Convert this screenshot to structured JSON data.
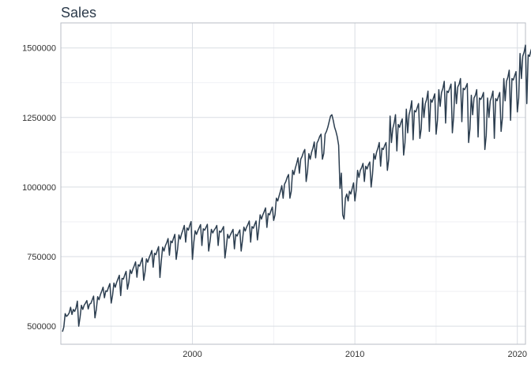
{
  "chart_data": {
    "type": "line",
    "title": "Sales",
    "xlabel": "",
    "ylabel": "",
    "x_range": [
      1991.9,
      2020.5
    ],
    "ylim": [
      435000,
      1590000
    ],
    "x_ticks": [
      {
        "value": 2000,
        "label": "2000"
      },
      {
        "value": 2010,
        "label": "2010"
      },
      {
        "value": 2020,
        "label": "2020"
      }
    ],
    "y_ticks": [
      {
        "value": 500000,
        "label": "500000"
      },
      {
        "value": 750000,
        "label": "750000"
      },
      {
        "value": 1000000,
        "label": "1000000"
      },
      {
        "value": 1250000,
        "label": "1250000"
      },
      {
        "value": 1500000,
        "label": "1500000"
      }
    ],
    "grid": true,
    "colors": {
      "line": "#2c3e50",
      "grid": "#d9dde3",
      "panel_border": "#b9bec6"
    },
    "series": [
      {
        "x_start": "1992-01",
        "frequency": "monthly",
        "values": [
          480000,
          497000,
          545000,
          535000,
          540000,
          548000,
          568000,
          542000,
          560000,
          553000,
          565000,
          590000,
          500000,
          532000,
          575000,
          560000,
          575000,
          583000,
          592000,
          562000,
          579000,
          582000,
          595000,
          608000,
          530000,
          560000,
          606000,
          595000,
          613000,
          626000,
          640000,
          602000,
          627000,
          625000,
          640000,
          653000,
          583000,
          611000,
          655000,
          640000,
          657000,
          670000,
          683000,
          610000,
          672000,
          669000,
          684000,
          697000,
          633000,
          657000,
          702000,
          689000,
          705000,
          717000,
          731000,
          676000,
          721000,
          716000,
          731000,
          745000,
          665000,
          695000,
          742000,
          730000,
          746000,
          758000,
          772000,
          712000,
          762000,
          757000,
          772000,
          786000,
          675000,
          735000,
          784000,
          770000,
          789000,
          800000,
          815000,
          755000,
          806000,
          800000,
          816000,
          830000,
          740000,
          776000,
          828000,
          813000,
          832000,
          846000,
          862000,
          802000,
          853000,
          845000,
          862000,
          876000,
          740000,
          800000,
          843000,
          830000,
          843000,
          854000,
          865000,
          790000,
          850000,
          845000,
          855000,
          866000,
          770000,
          805000,
          848000,
          835000,
          845000,
          852000,
          862000,
          790000,
          842000,
          838000,
          848000,
          858000,
          745000,
          783000,
          830000,
          816000,
          828000,
          838000,
          848000,
          778000,
          830000,
          824000,
          836000,
          846000,
          770000,
          810000,
          856000,
          842000,
          856000,
          866000,
          878000,
          802000,
          858000,
          852000,
          866000,
          878000,
          810000,
          850000,
          900000,
          885000,
          900000,
          912000,
          925000,
          855000,
          905000,
          900000,
          915000,
          928000,
          880000,
          900000,
          960000,
          950000,
          968000,
          985000,
          1005000,
          960000,
          1010000,
          1020000,
          1035000,
          1045000,
          960000,
          985000,
          1060000,
          1045000,
          1068000,
          1085000,
          1105000,
          1050000,
          1100000,
          1110000,
          1125000,
          1135000,
          1020000,
          1055000,
          1120000,
          1100000,
          1125000,
          1140000,
          1162000,
          1105000,
          1158000,
          1168000,
          1182000,
          1190000,
          1100000,
          1120000,
          1190000,
          1200000,
          1215000,
          1235000,
          1255000,
          1260000,
          1240000,
          1215000,
          1200000,
          1180000,
          1150000,
          995000,
          1050000,
          900000,
          885000,
          960000,
          975000,
          950000,
          985000,
          975000,
          995000,
          1015000,
          950000,
          990000,
          1060000,
          1035000,
          1060000,
          1070000,
          1085000,
          1020000,
          1075000,
          1065000,
          1080000,
          1090000,
          1000000,
          1045000,
          1120000,
          1100000,
          1125000,
          1140000,
          1160000,
          1075000,
          1140000,
          1135000,
          1150000,
          1160000,
          1060000,
          1100000,
          1255000,
          1160000,
          1210000,
          1230000,
          1260000,
          1130000,
          1225000,
          1215000,
          1232000,
          1245000,
          1115000,
          1160000,
          1280000,
          1195000,
          1260000,
          1280000,
          1310000,
          1170000,
          1275000,
          1270000,
          1285000,
          1300000,
          1175000,
          1210000,
          1320000,
          1250000,
          1300000,
          1315000,
          1345000,
          1200000,
          1315000,
          1305000,
          1320000,
          1335000,
          1190000,
          1240000,
          1350000,
          1290000,
          1340000,
          1355000,
          1380000,
          1230000,
          1345000,
          1340000,
          1355000,
          1370000,
          1195000,
          1255000,
          1378000,
          1300000,
          1360000,
          1370000,
          1390000,
          1235000,
          1355000,
          1350000,
          1360000,
          1372000,
          1160000,
          1210000,
          1330000,
          1260000,
          1320000,
          1330000,
          1350000,
          1180000,
          1320000,
          1315000,
          1325000,
          1340000,
          1135000,
          1185000,
          1320000,
          1250000,
          1310000,
          1325000,
          1345000,
          1175000,
          1318000,
          1310000,
          1325000,
          1340000,
          1200000,
          1250000,
          1390000,
          1310000,
          1380000,
          1395000,
          1420000,
          1240000,
          1390000,
          1385000,
          1400000,
          1415000,
          1270000,
          1320000,
          1480000,
          1390000,
          1470000,
          1485000,
          1510000,
          1300000,
          1475000,
          1470000,
          1490000,
          1505000,
          1340000,
          1395000,
          1520000,
          1450000,
          1510000,
          1500000,
          1480000,
          1460000,
          1450000
        ]
      }
    ]
  }
}
